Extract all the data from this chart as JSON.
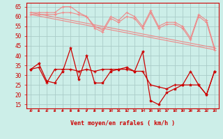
{
  "x": [
    0,
    1,
    2,
    3,
    4,
    5,
    6,
    7,
    8,
    9,
    10,
    11,
    12,
    13,
    14,
    15,
    16,
    17,
    18,
    19,
    20,
    21,
    22,
    23
  ],
  "wind_avg": [
    33,
    34,
    26,
    33,
    33,
    33,
    32,
    33,
    32,
    33,
    33,
    33,
    33,
    32,
    32,
    25,
    24,
    23,
    25,
    25,
    32,
    25,
    20,
    32
  ],
  "wind_gust": [
    33,
    36,
    27,
    26,
    32,
    44,
    28,
    40,
    26,
    26,
    32,
    33,
    34,
    32,
    42,
    17,
    15,
    21,
    23,
    25,
    25,
    25,
    20,
    32
  ],
  "rafales_high": [
    62,
    62,
    62,
    62,
    65,
    65,
    62,
    60,
    55,
    53,
    60,
    58,
    62,
    60,
    55,
    63,
    55,
    57,
    57,
    55,
    49,
    61,
    58,
    44
  ],
  "rafales_mid": [
    61,
    61,
    61,
    61,
    62,
    62,
    61,
    60,
    54,
    52,
    59,
    57,
    60,
    59,
    54,
    62,
    54,
    56,
    56,
    54,
    48,
    60,
    57,
    43
  ],
  "trend1": [
    62,
    44
  ],
  "trend2": [
    61,
    43
  ],
  "background_color": "#cceee8",
  "grid_color": "#aaccc8",
  "line_dark": "#cc0000",
  "line_light": "#ee8888",
  "xlabel": "Vent moyen/en rafales ( km/h )",
  "yticks": [
    15,
    20,
    25,
    30,
    35,
    40,
    45,
    50,
    55,
    60,
    65
  ],
  "ylim": [
    13,
    67
  ],
  "xlim": [
    -0.5,
    23.5
  ]
}
